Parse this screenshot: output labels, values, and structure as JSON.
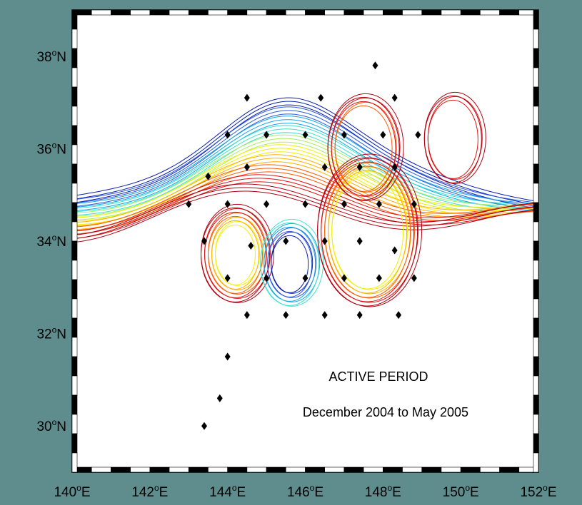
{
  "map": {
    "lon_range": [
      140,
      152
    ],
    "lat_range": [
      29,
      39
    ],
    "frame": "black-and-white checker border",
    "background": "#5f8c8c",
    "x_ticks": [
      {
        "value": 140,
        "label": "140",
        "hemi": "E"
      },
      {
        "value": 142,
        "label": "142",
        "hemi": "E"
      },
      {
        "value": 144,
        "label": "144",
        "hemi": "E"
      },
      {
        "value": 146,
        "label": "146",
        "hemi": "E"
      },
      {
        "value": 148,
        "label": "148",
        "hemi": "E"
      },
      {
        "value": 150,
        "label": "150",
        "hemi": "E"
      },
      {
        "value": 152,
        "label": "152",
        "hemi": "E"
      }
    ],
    "y_ticks": [
      {
        "value": 30,
        "label": "30",
        "hemi": "N"
      },
      {
        "value": 32,
        "label": "32",
        "hemi": "N"
      },
      {
        "value": 34,
        "label": "34",
        "hemi": "N"
      },
      {
        "value": 36,
        "label": "36",
        "hemi": "N"
      },
      {
        "value": 38,
        "label": "38",
        "hemi": "N"
      }
    ],
    "degree_symbol": "o",
    "annotation": {
      "line1": "ACTIVE PERIOD",
      "line2": "December 2004 to May 2005"
    },
    "station_marker": "black diamond",
    "stations": [
      [
        147.8,
        37.8
      ],
      [
        144.5,
        37.1
      ],
      [
        146.4,
        37.1
      ],
      [
        148.3,
        37.1
      ],
      [
        144.0,
        36.3
      ],
      [
        145.0,
        36.3
      ],
      [
        146.0,
        36.3
      ],
      [
        147.0,
        36.3
      ],
      [
        148.0,
        36.3
      ],
      [
        148.9,
        36.3
      ],
      [
        143.5,
        35.4
      ],
      [
        144.5,
        35.6
      ],
      [
        146.5,
        35.6
      ],
      [
        147.4,
        35.6
      ],
      [
        148.3,
        35.6
      ],
      [
        143.0,
        34.8
      ],
      [
        144.0,
        34.8
      ],
      [
        145.0,
        34.8
      ],
      [
        146.0,
        34.8
      ],
      [
        147.0,
        34.8
      ],
      [
        147.9,
        34.8
      ],
      [
        148.8,
        34.8
      ],
      [
        143.4,
        34.0
      ],
      [
        144.6,
        33.9
      ],
      [
        145.5,
        34.0
      ],
      [
        146.5,
        34.0
      ],
      [
        147.4,
        34.0
      ],
      [
        148.3,
        33.8
      ],
      [
        144.0,
        33.2
      ],
      [
        145.0,
        33.2
      ],
      [
        146.0,
        33.2
      ],
      [
        147.0,
        33.2
      ],
      [
        147.9,
        33.2
      ],
      [
        148.8,
        33.2
      ],
      [
        144.5,
        32.4
      ],
      [
        145.5,
        32.4
      ],
      [
        146.5,
        32.4
      ],
      [
        147.4,
        32.4
      ],
      [
        148.4,
        32.4
      ],
      [
        144.0,
        31.5
      ],
      [
        143.8,
        30.6
      ],
      [
        143.4,
        30.0
      ]
    ],
    "contour_colors": [
      "#0a1fb0",
      "#2a5ae0",
      "#12a8e8",
      "#40e0d0",
      "#a8f060",
      "#f0f000",
      "#ffb000",
      "#ff5a00",
      "#e01010",
      "#b00010"
    ]
  }
}
